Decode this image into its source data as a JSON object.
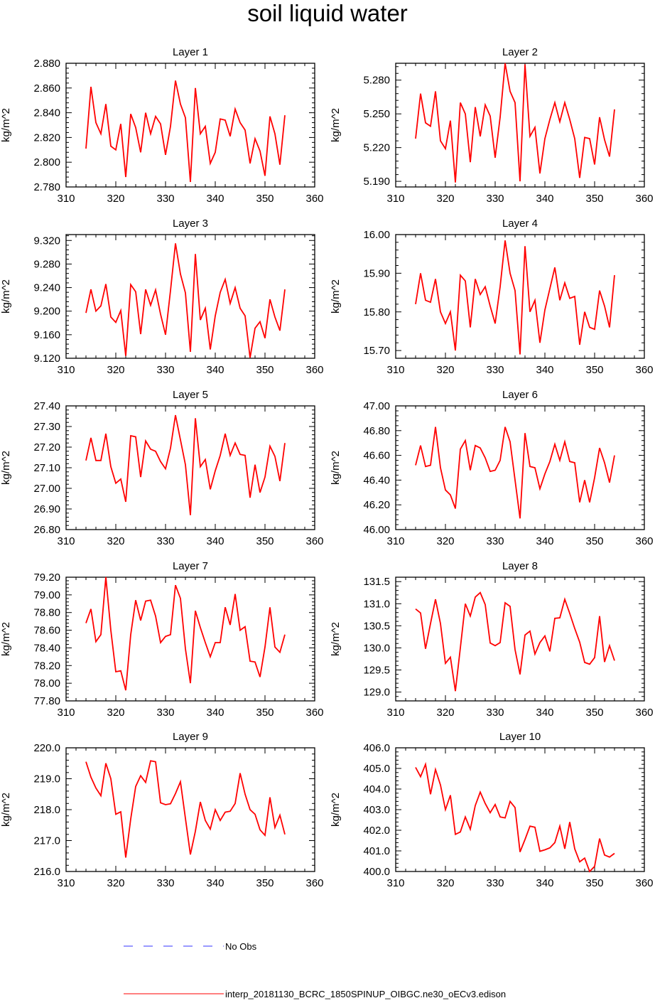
{
  "title": "soil liquid water",
  "legend": {
    "obs_label": "No Obs",
    "obs_color": "#3333ff",
    "model_label": "interp_20181130_BCRC_1850SPINUP_OIBGC.ne30_oECv3.edison",
    "model_color": "#ff0000"
  },
  "chart_data": [
    {
      "type": "line",
      "title": "Layer 1",
      "ylabel": "kg/m^2",
      "xlim": [
        310,
        360
      ],
      "xticks": [
        310,
        320,
        330,
        340,
        350,
        360
      ],
      "ylim": [
        2.78,
        2.88
      ],
      "yticks": [
        "2.780",
        "2.800",
        "2.820",
        "2.840",
        "2.860",
        "2.880"
      ],
      "grid": false,
      "x": [
        314,
        315,
        316,
        317,
        318,
        319,
        320,
        321,
        322,
        323,
        324,
        325,
        326,
        327,
        328,
        329,
        330,
        331,
        332,
        333,
        334,
        335,
        336,
        337,
        338,
        339,
        340,
        341,
        342,
        343,
        344,
        345,
        346,
        347,
        348,
        349,
        350,
        351,
        352,
        353,
        354
      ],
      "y": [
        2.811,
        2.861,
        2.832,
        2.823,
        2.847,
        2.813,
        2.81,
        2.831,
        2.788,
        2.839,
        2.828,
        2.808,
        2.84,
        2.823,
        2.837,
        2.831,
        2.806,
        2.829,
        2.866,
        2.847,
        2.836,
        2.784,
        2.86,
        2.823,
        2.829,
        2.799,
        2.808,
        2.835,
        2.834,
        2.821,
        2.843,
        2.832,
        2.826,
        2.799,
        2.819,
        2.809,
        2.789,
        2.837,
        2.823,
        2.798,
        2.838
      ]
    },
    {
      "type": "line",
      "title": "Layer 2",
      "ylabel": "kg/m^2",
      "xlim": [
        310,
        360
      ],
      "xticks": [
        310,
        320,
        330,
        340,
        350,
        360
      ],
      "ylim": [
        5.185,
        5.295
      ],
      "yticks": [
        "5.190",
        "5.220",
        "5.250",
        "5.280"
      ],
      "grid": false,
      "x": [
        314,
        315,
        316,
        317,
        318,
        319,
        320,
        321,
        322,
        323,
        324,
        325,
        326,
        327,
        328,
        329,
        330,
        331,
        332,
        333,
        334,
        335,
        336,
        337,
        338,
        339,
        340,
        341,
        342,
        343,
        344,
        345,
        346,
        347,
        348,
        349,
        350,
        351,
        352,
        353,
        354
      ],
      "y": [
        5.228,
        5.268,
        5.242,
        5.239,
        5.27,
        5.226,
        5.219,
        5.244,
        5.189,
        5.26,
        5.25,
        5.207,
        5.256,
        5.23,
        5.258,
        5.248,
        5.211,
        5.247,
        5.295,
        5.27,
        5.26,
        5.19,
        5.294,
        5.23,
        5.238,
        5.197,
        5.228,
        5.245,
        5.26,
        5.243,
        5.26,
        5.245,
        5.228,
        5.193,
        5.229,
        5.228,
        5.205,
        5.247,
        5.227,
        5.212,
        5.254
      ]
    },
    {
      "type": "line",
      "title": "Layer 3",
      "ylabel": "kg/m^2",
      "xlim": [
        310,
        360
      ],
      "xticks": [
        310,
        320,
        330,
        340,
        350,
        360
      ],
      "ylim": [
        9.12,
        9.33
      ],
      "yticks": [
        "9.120",
        "9.160",
        "9.200",
        "9.240",
        "9.280",
        "9.320"
      ],
      "grid": false,
      "x": [
        314,
        315,
        316,
        317,
        318,
        319,
        320,
        321,
        322,
        323,
        324,
        325,
        326,
        327,
        328,
        329,
        330,
        331,
        332,
        333,
        334,
        335,
        336,
        337,
        338,
        339,
        340,
        341,
        342,
        343,
        344,
        345,
        346,
        347,
        348,
        349,
        350,
        351,
        352,
        353,
        354
      ],
      "y": [
        9.197,
        9.237,
        9.2,
        9.209,
        9.246,
        9.19,
        9.181,
        9.201,
        9.124,
        9.245,
        9.233,
        9.161,
        9.237,
        9.21,
        9.236,
        9.195,
        9.16,
        9.235,
        9.315,
        9.263,
        9.231,
        9.131,
        9.297,
        9.185,
        9.205,
        9.135,
        9.192,
        9.232,
        9.254,
        9.213,
        9.24,
        9.205,
        9.192,
        9.121,
        9.171,
        9.182,
        9.154,
        9.22,
        9.19,
        9.167,
        9.237
      ]
    },
    {
      "type": "line",
      "title": "Layer 4",
      "ylabel": "kg/m^2",
      "xlim": [
        310,
        360
      ],
      "xticks": [
        310,
        320,
        330,
        340,
        350,
        360
      ],
      "ylim": [
        15.68,
        16.0
      ],
      "yticks": [
        "15.70",
        "15.80",
        "15.90",
        "16.00"
      ],
      "grid": false,
      "x": [
        314,
        315,
        316,
        317,
        318,
        319,
        320,
        321,
        322,
        323,
        324,
        325,
        326,
        327,
        328,
        329,
        330,
        331,
        332,
        333,
        334,
        335,
        336,
        337,
        338,
        339,
        340,
        341,
        342,
        343,
        344,
        345,
        346,
        347,
        348,
        349,
        350,
        351,
        352,
        353,
        354
      ],
      "y": [
        15.82,
        15.9,
        15.83,
        15.825,
        15.885,
        15.8,
        15.77,
        15.8,
        15.7,
        15.895,
        15.88,
        15.76,
        15.885,
        15.845,
        15.865,
        15.815,
        15.77,
        15.865,
        15.985,
        15.9,
        15.855,
        15.69,
        15.97,
        15.8,
        15.83,
        15.72,
        15.805,
        15.86,
        15.915,
        15.83,
        15.875,
        15.835,
        15.84,
        15.715,
        15.8,
        15.76,
        15.755,
        15.855,
        15.815,
        15.76,
        15.895
      ]
    },
    {
      "type": "line",
      "title": "Layer 5",
      "ylabel": "kg/m^2",
      "xlim": [
        310,
        360
      ],
      "xticks": [
        310,
        320,
        330,
        340,
        350,
        360
      ],
      "ylim": [
        26.8,
        27.4
      ],
      "yticks": [
        "26.80",
        "26.90",
        "27.00",
        "27.10",
        "27.20",
        "27.30",
        "27.40"
      ],
      "grid": false,
      "x": [
        314,
        315,
        316,
        317,
        318,
        319,
        320,
        321,
        322,
        323,
        324,
        325,
        326,
        327,
        328,
        329,
        330,
        331,
        332,
        333,
        334,
        335,
        336,
        337,
        338,
        339,
        340,
        341,
        342,
        343,
        344,
        345,
        346,
        347,
        348,
        349,
        350,
        351,
        352,
        353,
        354
      ],
      "y": [
        27.135,
        27.245,
        27.135,
        27.135,
        27.265,
        27.105,
        27.025,
        27.045,
        26.935,
        27.255,
        27.25,
        27.055,
        27.23,
        27.19,
        27.18,
        27.13,
        27.095,
        27.195,
        27.355,
        27.235,
        27.115,
        26.87,
        27.34,
        27.105,
        27.14,
        26.995,
        27.085,
        27.16,
        27.265,
        27.16,
        27.22,
        27.165,
        27.16,
        26.955,
        27.115,
        26.98,
        27.055,
        27.205,
        27.155,
        27.035,
        27.22
      ]
    },
    {
      "type": "line",
      "title": "Layer 6",
      "ylabel": "kg/m^2",
      "xlim": [
        310,
        360
      ],
      "xticks": [
        310,
        320,
        330,
        340,
        350,
        360
      ],
      "ylim": [
        46.0,
        47.0
      ],
      "yticks": [
        "46.00",
        "46.20",
        "46.40",
        "46.60",
        "46.80",
        "47.00"
      ],
      "grid": false,
      "x": [
        314,
        315,
        316,
        317,
        318,
        319,
        320,
        321,
        322,
        323,
        324,
        325,
        326,
        327,
        328,
        329,
        330,
        331,
        332,
        333,
        334,
        335,
        336,
        337,
        338,
        339,
        340,
        341,
        342,
        343,
        344,
        345,
        346,
        347,
        348,
        349,
        350,
        351,
        352,
        353,
        354
      ],
      "y": [
        46.52,
        46.68,
        46.51,
        46.52,
        46.83,
        46.5,
        46.32,
        46.28,
        46.17,
        46.65,
        46.72,
        46.48,
        46.68,
        46.66,
        46.58,
        46.47,
        46.48,
        46.56,
        46.83,
        46.71,
        46.4,
        46.09,
        46.78,
        46.51,
        46.5,
        46.33,
        46.45,
        46.55,
        46.69,
        46.56,
        46.71,
        46.55,
        46.54,
        46.22,
        46.4,
        46.22,
        46.42,
        46.66,
        46.54,
        46.38,
        46.6
      ]
    },
    {
      "type": "line",
      "title": "Layer 7",
      "ylabel": "kg/m^2",
      "xlim": [
        310,
        360
      ],
      "xticks": [
        310,
        320,
        330,
        340,
        350,
        360
      ],
      "ylim": [
        77.8,
        79.2
      ],
      "yticks": [
        "77.80",
        "78.00",
        "78.20",
        "78.40",
        "78.60",
        "78.80",
        "79.00",
        "79.20"
      ],
      "grid": false,
      "x": [
        314,
        315,
        316,
        317,
        318,
        319,
        320,
        321,
        322,
        323,
        324,
        325,
        326,
        327,
        328,
        329,
        330,
        331,
        332,
        333,
        334,
        335,
        336,
        337,
        338,
        339,
        340,
        341,
        342,
        343,
        344,
        345,
        346,
        347,
        348,
        349,
        350,
        351,
        352,
        353,
        354
      ],
      "y": [
        78.68,
        78.84,
        78.47,
        78.55,
        79.2,
        78.6,
        78.13,
        78.14,
        77.92,
        78.55,
        78.94,
        78.71,
        78.93,
        78.94,
        78.76,
        78.46,
        78.53,
        78.55,
        79.11,
        78.96,
        78.39,
        78.0,
        78.82,
        78.63,
        78.46,
        78.3,
        78.46,
        78.46,
        78.86,
        78.66,
        79.01,
        78.6,
        78.64,
        78.25,
        78.24,
        78.07,
        78.41,
        78.86,
        78.41,
        78.35,
        78.55
      ]
    },
    {
      "type": "line",
      "title": "Layer 8",
      "ylabel": "kg/m^2",
      "xlim": [
        310,
        360
      ],
      "xticks": [
        310,
        320,
        330,
        340,
        350,
        360
      ],
      "ylim": [
        128.8,
        131.6
      ],
      "yticks": [
        "129.0",
        "129.5",
        "130.0",
        "130.5",
        "131.0",
        "131.5"
      ],
      "grid": false,
      "x": [
        314,
        315,
        316,
        317,
        318,
        319,
        320,
        321,
        322,
        323,
        324,
        325,
        326,
        327,
        328,
        329,
        330,
        331,
        332,
        333,
        334,
        335,
        336,
        337,
        338,
        339,
        340,
        341,
        342,
        343,
        344,
        345,
        346,
        347,
        348,
        349,
        350,
        351,
        352,
        353,
        354
      ],
      "y": [
        130.88,
        130.79,
        129.98,
        130.55,
        131.1,
        130.55,
        129.65,
        129.79,
        129.02,
        130.0,
        131.0,
        130.72,
        131.15,
        131.25,
        130.98,
        130.11,
        130.05,
        130.12,
        131.02,
        130.94,
        129.96,
        129.4,
        130.29,
        130.38,
        129.86,
        130.12,
        130.27,
        129.92,
        130.67,
        130.68,
        131.1,
        130.78,
        130.44,
        130.13,
        129.67,
        129.63,
        129.78,
        130.72,
        129.68,
        130.05,
        129.71
      ]
    },
    {
      "type": "line",
      "title": "Layer 9",
      "ylabel": "kg/m^2",
      "xlim": [
        310,
        360
      ],
      "xticks": [
        310,
        320,
        330,
        340,
        350,
        360
      ],
      "ylim": [
        216.0,
        220.0
      ],
      "yticks": [
        "216.0",
        "217.0",
        "218.0",
        "219.0",
        "220.0"
      ],
      "grid": false,
      "x": [
        314,
        315,
        316,
        317,
        318,
        319,
        320,
        321,
        322,
        323,
        324,
        325,
        326,
        327,
        328,
        329,
        330,
        331,
        332,
        333,
        334,
        335,
        336,
        337,
        338,
        339,
        340,
        341,
        342,
        343,
        344,
        345,
        346,
        347,
        348,
        349,
        350,
        351,
        352,
        353,
        354
      ],
      "y": [
        219.55,
        219.05,
        218.7,
        218.45,
        219.5,
        219.0,
        217.85,
        217.93,
        216.45,
        217.7,
        218.75,
        219.1,
        218.88,
        219.58,
        219.55,
        218.22,
        218.16,
        218.19,
        218.52,
        218.9,
        217.72,
        216.55,
        217.3,
        218.25,
        217.65,
        217.37,
        218.0,
        217.65,
        217.92,
        217.95,
        218.2,
        219.18,
        218.5,
        218.0,
        217.85,
        217.35,
        217.17,
        218.4,
        217.42,
        217.82,
        217.2
      ]
    },
    {
      "type": "line",
      "title": "Layer 10",
      "ylabel": "kg/m^2",
      "xlim": [
        310,
        360
      ],
      "xticks": [
        310,
        320,
        330,
        340,
        350,
        360
      ],
      "ylim": [
        400.0,
        406.0
      ],
      "yticks": [
        "400.0",
        "401.0",
        "402.0",
        "403.0",
        "404.0",
        "405.0",
        "406.0"
      ],
      "grid": false,
      "x": [
        314,
        315,
        316,
        317,
        318,
        319,
        320,
        321,
        322,
        323,
        324,
        325,
        326,
        327,
        328,
        329,
        330,
        331,
        332,
        333,
        334,
        335,
        336,
        337,
        338,
        339,
        340,
        341,
        342,
        343,
        344,
        345,
        346,
        347,
        348,
        349,
        350,
        351,
        352,
        353,
        354
      ],
      "y": [
        405.05,
        404.6,
        405.2,
        403.75,
        404.95,
        404.2,
        403.0,
        403.7,
        401.8,
        401.92,
        402.65,
        402.05,
        403.2,
        403.85,
        403.3,
        402.85,
        403.25,
        402.65,
        402.6,
        403.4,
        403.1,
        400.95,
        401.55,
        402.2,
        402.15,
        400.98,
        401.05,
        401.15,
        401.4,
        402.2,
        401.1,
        402.4,
        401.1,
        400.47,
        400.65,
        400.0,
        400.25,
        401.6,
        400.8,
        400.7,
        400.88
      ]
    }
  ]
}
